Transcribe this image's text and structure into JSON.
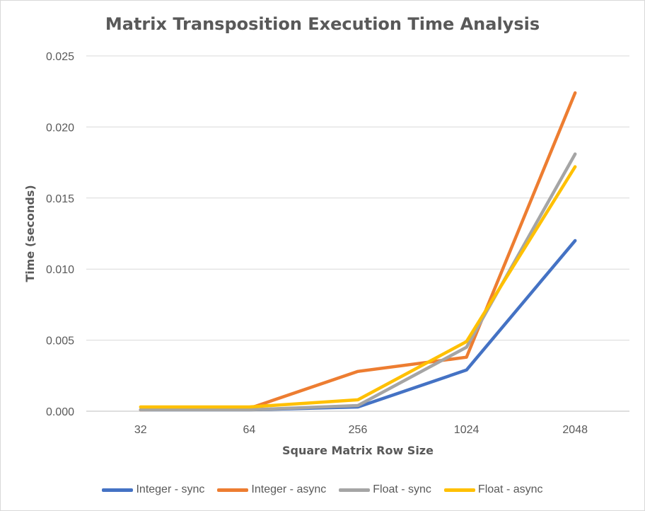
{
  "chart_data": {
    "type": "line",
    "title": "Matrix Transposition Execution Time Analysis",
    "xlabel": "Square Matrix Row Size",
    "ylabel": "Time (seconds)",
    "categories": [
      "32",
      "64",
      "256",
      "1024",
      "2048"
    ],
    "ylim": [
      0,
      0.025
    ],
    "yticks": [
      "0.000",
      "0.005",
      "0.010",
      "0.015",
      "0.020",
      "0.025"
    ],
    "grid": "horizontal",
    "legend_position": "bottom",
    "series": [
      {
        "name": "Integer - sync",
        "color": "#4472c4",
        "values": [
          0.0001,
          0.0001,
          0.0003,
          0.0029,
          0.012
        ]
      },
      {
        "name": "Integer - async",
        "color": "#ed7d31",
        "values": [
          0.0001,
          0.0002,
          0.0028,
          0.0038,
          0.0224
        ]
      },
      {
        "name": "Float - sync",
        "color": "#a5a5a5",
        "values": [
          0.0001,
          0.0001,
          0.0004,
          0.0045,
          0.0181
        ]
      },
      {
        "name": "Float - async",
        "color": "#ffc000",
        "values": [
          0.0003,
          0.0003,
          0.0008,
          0.0049,
          0.0172
        ]
      }
    ]
  }
}
